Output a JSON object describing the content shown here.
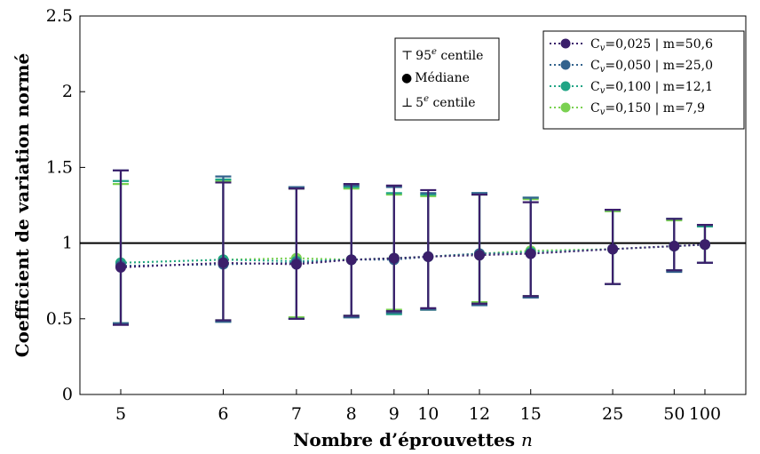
{
  "chart_data": {
    "type": "scatter",
    "xlabel": "Nombre d’éprouvettes",
    "xlabel_var": "n",
    "ylabel": "Coefficient de variation normé",
    "x_ticks": [
      5,
      6,
      7,
      8,
      9,
      10,
      12,
      15,
      25,
      50,
      100
    ],
    "x_scale": "reciprocal",
    "y_ticks": [
      "0",
      "0.5",
      "1",
      "1.5",
      "2",
      "2.5"
    ],
    "ylim": [
      0,
      2.5
    ],
    "reference_line": 1,
    "grid": false,
    "symbol_legend": {
      "placement": "top-center",
      "items": [
        {
          "symbol": "⊤",
          "label": "95",
          "sup": "e",
          "label_tail": " centile"
        },
        {
          "symbol": "●",
          "label": "Médiane"
        },
        {
          "symbol": "⊥",
          "label": "5",
          "sup": "e",
          "label_tail": " centile"
        }
      ]
    },
    "legend": {
      "placement": "top-right"
    },
    "series": [
      {
        "name": "C",
        "sub": "v",
        "name_tail": "=0,025 | m=50,6",
        "color": "#3b1f6b",
        "x": [
          5,
          6,
          7,
          8,
          9,
          10,
          12,
          15,
          25,
          50,
          100
        ],
        "median": [
          0.84,
          0.87,
          0.86,
          0.89,
          0.9,
          0.91,
          0.92,
          0.93,
          0.96,
          0.98,
          0.99
        ],
        "p95": [
          1.48,
          1.4,
          1.36,
          1.39,
          1.38,
          1.35,
          1.32,
          1.27,
          1.22,
          1.16,
          1.12
        ],
        "p5": [
          0.46,
          0.49,
          0.5,
          0.52,
          0.55,
          0.57,
          0.6,
          0.65,
          0.73,
          0.82,
          0.87
        ]
      },
      {
        "name": "C",
        "sub": "v",
        "name_tail": "=0,050 | m=25,0",
        "color": "#33638d",
        "x": [
          5,
          6,
          7,
          8,
          9,
          10,
          12,
          15,
          25,
          50,
          100
        ],
        "median": [
          0.85,
          0.86,
          0.87,
          0.89,
          0.89,
          0.91,
          0.93,
          0.93,
          0.96,
          0.98,
          0.99
        ],
        "p95": [
          1.48,
          1.44,
          1.37,
          1.38,
          1.37,
          1.33,
          1.33,
          1.3,
          1.22,
          1.16,
          1.12
        ],
        "p5": [
          0.47,
          0.48,
          0.5,
          0.51,
          0.54,
          0.56,
          0.59,
          0.64,
          0.73,
          0.81,
          0.87
        ]
      },
      {
        "name": "C",
        "sub": "v",
        "name_tail": "=0,100 | m=12,1",
        "color": "#21a585",
        "x": [
          5,
          6,
          7,
          8,
          9,
          10,
          12,
          15,
          25,
          50,
          100
        ],
        "median": [
          0.87,
          0.89,
          0.88,
          0.89,
          0.9,
          0.91,
          0.93,
          0.94,
          0.96,
          0.98,
          0.99
        ],
        "p95": [
          1.41,
          1.42,
          1.37,
          1.37,
          1.33,
          1.32,
          1.33,
          1.3,
          1.22,
          1.16,
          1.11
        ],
        "p5": [
          0.47,
          0.48,
          0.5,
          0.51,
          0.53,
          0.56,
          0.6,
          0.64,
          0.73,
          0.82,
          0.87
        ]
      },
      {
        "name": "C",
        "sub": "v",
        "name_tail": "=0,150 | m=7,9",
        "color": "#7ad151",
        "x": [
          5,
          6,
          7,
          8,
          9,
          10,
          12,
          15,
          25,
          50,
          100
        ],
        "median": [
          0.87,
          0.89,
          0.9,
          0.89,
          0.9,
          0.91,
          0.93,
          0.95,
          0.96,
          0.98,
          0.99
        ],
        "p95": [
          1.39,
          1.41,
          1.36,
          1.36,
          1.32,
          1.31,
          1.32,
          1.29,
          1.21,
          1.15,
          1.11
        ],
        "p5": [
          0.47,
          0.49,
          0.51,
          0.52,
          0.56,
          0.56,
          0.61,
          0.65,
          0.73,
          0.82,
          0.87
        ]
      }
    ]
  }
}
